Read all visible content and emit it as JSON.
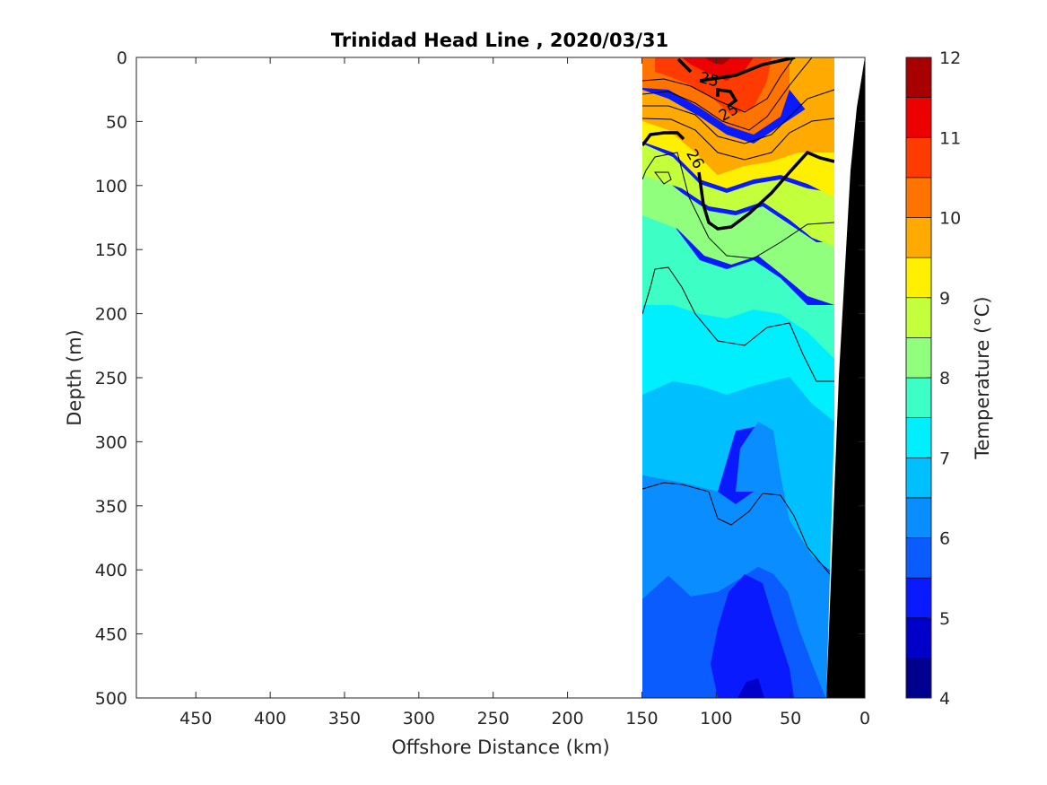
{
  "chart_data": {
    "type": "contour",
    "title": "Trinidad Head Line , 2020/03/31",
    "xlabel": "Offshore Distance (km)",
    "ylabel": "Depth (m)",
    "xlim": [
      490,
      0
    ],
    "ylim": [
      0,
      500
    ],
    "x_reversed": true,
    "y_reversed": true,
    "xticks": [
      450,
      400,
      350,
      300,
      250,
      200,
      150,
      100,
      50,
      0
    ],
    "yticks": [
      0,
      50,
      100,
      150,
      200,
      250,
      300,
      350,
      400,
      450,
      500
    ],
    "data_extent_km": [
      150,
      22
    ],
    "colorbar": {
      "label": "Temperature (°C)",
      "min": 4,
      "max": 12,
      "ticks": [
        4,
        5,
        6,
        7,
        8,
        9,
        10,
        11,
        12
      ],
      "step": 0.5,
      "colors": [
        "#00008f",
        "#0000c8",
        "#0a1aff",
        "#0b5cff",
        "#0a8dff",
        "#00bfff",
        "#00efff",
        "#3dffc6",
        "#8fff7d",
        "#c4ff3b",
        "#ffef00",
        "#ffaa00",
        "#ff7300",
        "#ff3b00",
        "#ed0000",
        "#a80000"
      ]
    },
    "temperature_profiles": [
      {
        "distance_km": 150,
        "depth_m": [
          0,
          20,
          50,
          70,
          100,
          130,
          150,
          200,
          250,
          300,
          350,
          400,
          450,
          500
        ],
        "temperature_c": [
          10.3,
          10.1,
          9.8,
          9.2,
          8.5,
          8.0,
          7.8,
          7.3,
          7.0,
          6.7,
          6.4,
          6.1,
          6.0,
          5.9
        ]
      },
      {
        "distance_km": 130,
        "depth_m": [
          0,
          20,
          50,
          70,
          100,
          130,
          150,
          200,
          250,
          300,
          350,
          400,
          450,
          500
        ],
        "temperature_c": [
          10.4,
          10.2,
          9.9,
          9.4,
          8.6,
          8.2,
          8.0,
          7.6,
          7.1,
          6.7,
          6.3,
          6.0,
          5.8,
          5.6
        ]
      },
      {
        "distance_km": 100,
        "depth_m": [
          0,
          20,
          50,
          70,
          100,
          130,
          150,
          200,
          250,
          300,
          350,
          400,
          450,
          500
        ],
        "temperature_c": [
          11.0,
          10.8,
          10.3,
          9.9,
          9.3,
          8.8,
          8.3,
          7.9,
          7.3,
          6.8,
          6.3,
          5.8,
          5.5,
          5.4
        ]
      },
      {
        "distance_km": 70,
        "depth_m": [
          0,
          20,
          50,
          70,
          100,
          130,
          150,
          200,
          250,
          300,
          350,
          400,
          450,
          500
        ],
        "temperature_c": [
          10.9,
          10.6,
          10.2,
          9.8,
          9.2,
          8.6,
          8.2,
          7.6,
          7.0,
          6.5,
          6.1,
          5.7,
          5.3,
          5.1
        ]
      },
      {
        "distance_km": 40,
        "depth_m": [
          0,
          20,
          50,
          70,
          100,
          130,
          150,
          200,
          250,
          300,
          350,
          400,
          450,
          500
        ],
        "temperature_c": [
          10.1,
          10.0,
          9.8,
          9.6,
          9.1,
          8.6,
          8.3,
          7.8,
          7.4,
          7.0,
          6.8,
          6.4,
          6.1,
          5.9
        ]
      },
      {
        "distance_km": 22,
        "depth_m": [
          0,
          20,
          50,
          70,
          100,
          130,
          150,
          200,
          250,
          300,
          350,
          400
        ],
        "temperature_c": [
          10.0,
          9.9,
          9.8,
          9.6,
          9.2,
          8.8,
          8.5,
          8.0,
          7.6,
          7.2,
          6.9,
          6.7
        ]
      }
    ],
    "contour_labels": [
      "25",
      "25",
      "26"
    ],
    "bathymetry_color": "#000000"
  }
}
